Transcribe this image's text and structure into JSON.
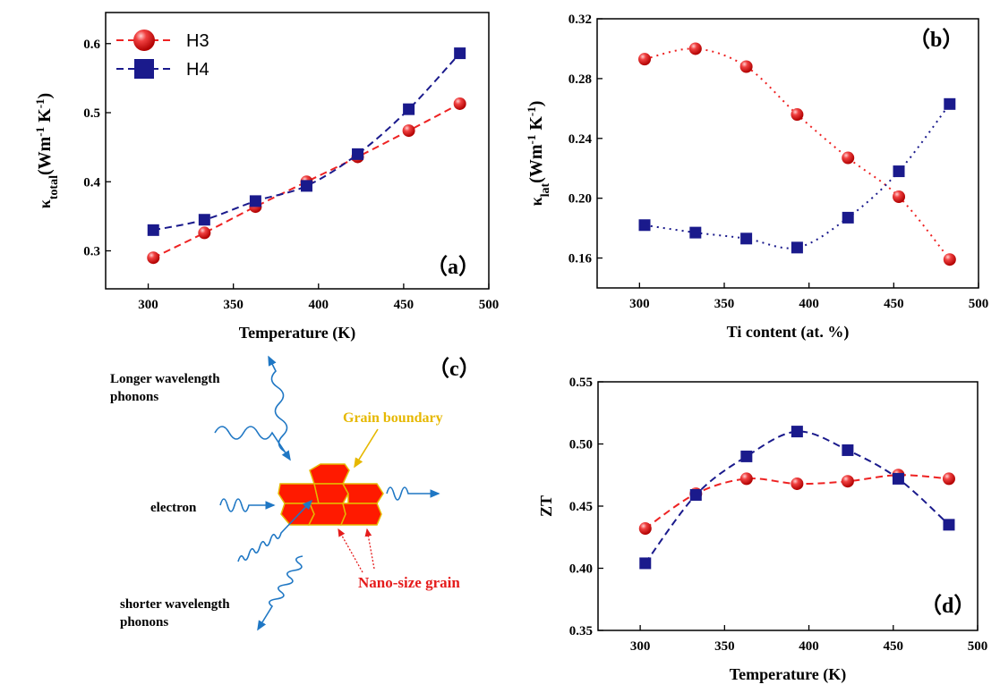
{
  "colors": {
    "h3": "#ee2222",
    "h4": "#1a1a8c",
    "grain_fill": "#ff1a00",
    "grain_edge": "#e6b800",
    "wave": "#1f77c4",
    "grain_label": "#e6b800",
    "nano_label": "#e51c1c"
  },
  "chart_data": [
    {
      "id": "a",
      "panel_label": "（a）",
      "type": "line",
      "xlabel": "Temperature (K)",
      "ylabel": "κtotal (Wm-1 K-1)",
      "ylabel_parts": {
        "sym": "κ",
        "sub": "total",
        "unit_open": "(Wm",
        "exp1": "-1",
        "unit_mid": " K",
        "exp2": "-1",
        "unit_close": ")"
      },
      "xlim": [
        275,
        500
      ],
      "ylim": [
        0.245,
        0.645
      ],
      "xticks": [
        300,
        350,
        400,
        450,
        500
      ],
      "yticks": [
        0.3,
        0.4,
        0.5,
        0.6
      ],
      "legend": {
        "position": "top-left",
        "entries": [
          "H3",
          "H4"
        ]
      },
      "series": [
        {
          "name": "H3",
          "marker": "circle",
          "line": "dashed",
          "x": [
            303,
            333,
            363,
            393,
            423,
            453,
            483
          ],
          "y": [
            0.29,
            0.326,
            0.364,
            0.4,
            0.436,
            0.474,
            0.513
          ]
        },
        {
          "name": "H4",
          "marker": "square",
          "line": "dashed",
          "x": [
            303,
            333,
            363,
            393,
            423,
            453,
            483
          ],
          "y": [
            0.33,
            0.345,
            0.372,
            0.394,
            0.44,
            0.505,
            0.586
          ]
        }
      ]
    },
    {
      "id": "b",
      "panel_label": "（b）",
      "type": "line",
      "xlabel": "Ti content (at. %)",
      "ylabel": "κlat (Wm-1 K-1)",
      "ylabel_parts": {
        "sym": "κ",
        "sub": "lat",
        "unit_open": "(Wm",
        "exp1": "-1",
        "unit_mid": " K",
        "exp2": "-1",
        "unit_close": ")"
      },
      "xlim": [
        275,
        500
      ],
      "ylim": [
        0.14,
        0.32
      ],
      "xticks": [
        300,
        350,
        400,
        450,
        500
      ],
      "yticks": [
        0.16,
        0.2,
        0.24,
        0.28,
        0.32
      ],
      "series": [
        {
          "marker": "circle",
          "line": "dotted",
          "x": [
            303,
            333,
            363,
            393,
            423,
            453,
            483
          ],
          "y": [
            0.293,
            0.3,
            0.288,
            0.256,
            0.227,
            0.201,
            0.159
          ]
        },
        {
          "marker": "square",
          "line": "dotted",
          "x": [
            303,
            333,
            363,
            393,
            423,
            453,
            483
          ],
          "y": [
            0.182,
            0.177,
            0.173,
            0.167,
            0.187,
            0.218,
            0.263
          ]
        }
      ]
    },
    {
      "id": "d",
      "panel_label": "（d）",
      "type": "line",
      "xlabel": "Temperature (K)",
      "ylabel": "ZT",
      "xlim": [
        275,
        500
      ],
      "ylim": [
        0.35,
        0.55
      ],
      "xticks": [
        300,
        350,
        400,
        450,
        500
      ],
      "yticks": [
        0.35,
        0.4,
        0.45,
        0.5,
        0.55
      ],
      "series": [
        {
          "marker": "circle",
          "line": "dashed",
          "x": [
            303,
            333,
            363,
            393,
            423,
            453,
            483
          ],
          "y": [
            0.432,
            0.46,
            0.472,
            0.468,
            0.47,
            0.475,
            0.472
          ]
        },
        {
          "marker": "square",
          "line": "dashed",
          "x": [
            303,
            333,
            363,
            393,
            423,
            453,
            483
          ],
          "y": [
            0.404,
            0.459,
            0.49,
            0.51,
            0.495,
            0.472,
            0.435
          ]
        }
      ]
    }
  ],
  "schematic": {
    "panel_label": "（c）",
    "longer_line1": "Longer wavelength",
    "longer_line2": "phonons",
    "electron": "electron",
    "grain_boundary": "Grain boundary",
    "nano_grain": "Nano-size grain",
    "shorter_line1": "shorter wavelength",
    "shorter_line2": "phonons"
  }
}
